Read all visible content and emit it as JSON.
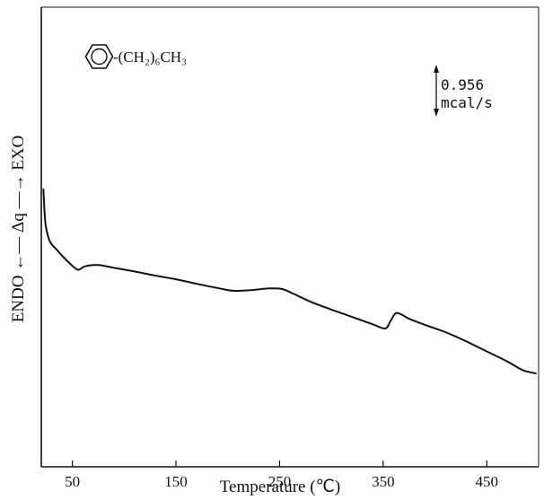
{
  "chart_data": {
    "type": "line",
    "title": "",
    "xlabel": "Temperature (℃)",
    "ylabel": "ENDO ←— Δq —→ EXO",
    "xlim": [
      20,
      500
    ],
    "ylim": [
      0,
      100
    ],
    "x_ticks": [
      50,
      150,
      250,
      350,
      450
    ],
    "x_tick_labels": [
      "50",
      "150",
      "250",
      "350",
      "450"
    ],
    "y_axis_numeric_labels": false,
    "grid": false,
    "legend": "none",
    "line_color": "#111111",
    "scale_bar": {
      "value": "0.956",
      "unit": "mcal/s"
    },
    "structure": {
      "ring": "benzene",
      "substituent": "-(CH₂)₆CH₃"
    },
    "series": [
      {
        "x": [
          22,
          24,
          28,
          35,
          45,
          55,
          62,
          75,
          90,
          110,
          130,
          150,
          170,
          190,
          205,
          220,
          240,
          252,
          262,
          280,
          300,
          320,
          340,
          352,
          357,
          362,
          368,
          375,
          390,
          410,
          430,
          450,
          470,
          485,
          498
        ],
        "y": [
          60.5,
          53,
          49.2,
          47.2,
          44.8,
          42.9,
          43.6,
          43.9,
          43.3,
          42.5,
          41.6,
          40.8,
          39.8,
          38.9,
          38.3,
          38.4,
          38.8,
          38.7,
          37.8,
          35.9,
          34.2,
          32.6,
          31.0,
          30.1,
          31.7,
          33.4,
          33.1,
          32.2,
          30.9,
          29.3,
          27.3,
          25.1,
          22.9,
          21.0,
          20.3
        ]
      }
    ]
  }
}
